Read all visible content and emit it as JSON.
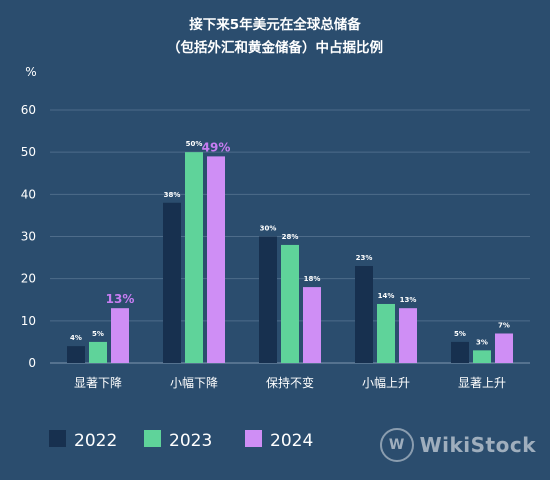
{
  "chart_data": {
    "type": "bar",
    "title_lines": [
      "接下来5年美元在全球总储备",
      "（包括外汇和黄金储备）中占据比例"
    ],
    "ylabel": "%",
    "ylim": [
      0,
      60
    ],
    "yticks": [
      0,
      10,
      20,
      30,
      40,
      50,
      60
    ],
    "grid": true,
    "legend_position": "bottom-left",
    "categories": [
      "显著下降",
      "小幅下降",
      "保持不变",
      "小幅上升",
      "显著上升"
    ],
    "series": [
      {
        "name": "2022",
        "color": "#17304f",
        "values": [
          4,
          38,
          30,
          23,
          5
        ],
        "labels": [
          "4%",
          "38%",
          "30%",
          "23%",
          "5%"
        ]
      },
      {
        "name": "2023",
        "color": "#5fd39a",
        "values": [
          5,
          50,
          28,
          14,
          3
        ],
        "labels": [
          "5%",
          "50%",
          "28%",
          "14%",
          "3%"
        ]
      },
      {
        "name": "2024",
        "color": "#cf8ef5",
        "values": [
          13,
          49,
          18,
          13,
          7
        ],
        "labels": [
          "13%",
          "49%",
          "18%",
          "13%",
          "7%"
        ]
      }
    ],
    "highlight_labels": {
      "series": "2024",
      "categories": [
        "显著下降",
        "小幅下降"
      ],
      "color": "#c77df2"
    }
  },
  "watermark": {
    "text": "WikiStock"
  },
  "colors": {
    "background": "#2b4d6e",
    "grid": "#4e6c8a",
    "text": "#ffffff"
  }
}
